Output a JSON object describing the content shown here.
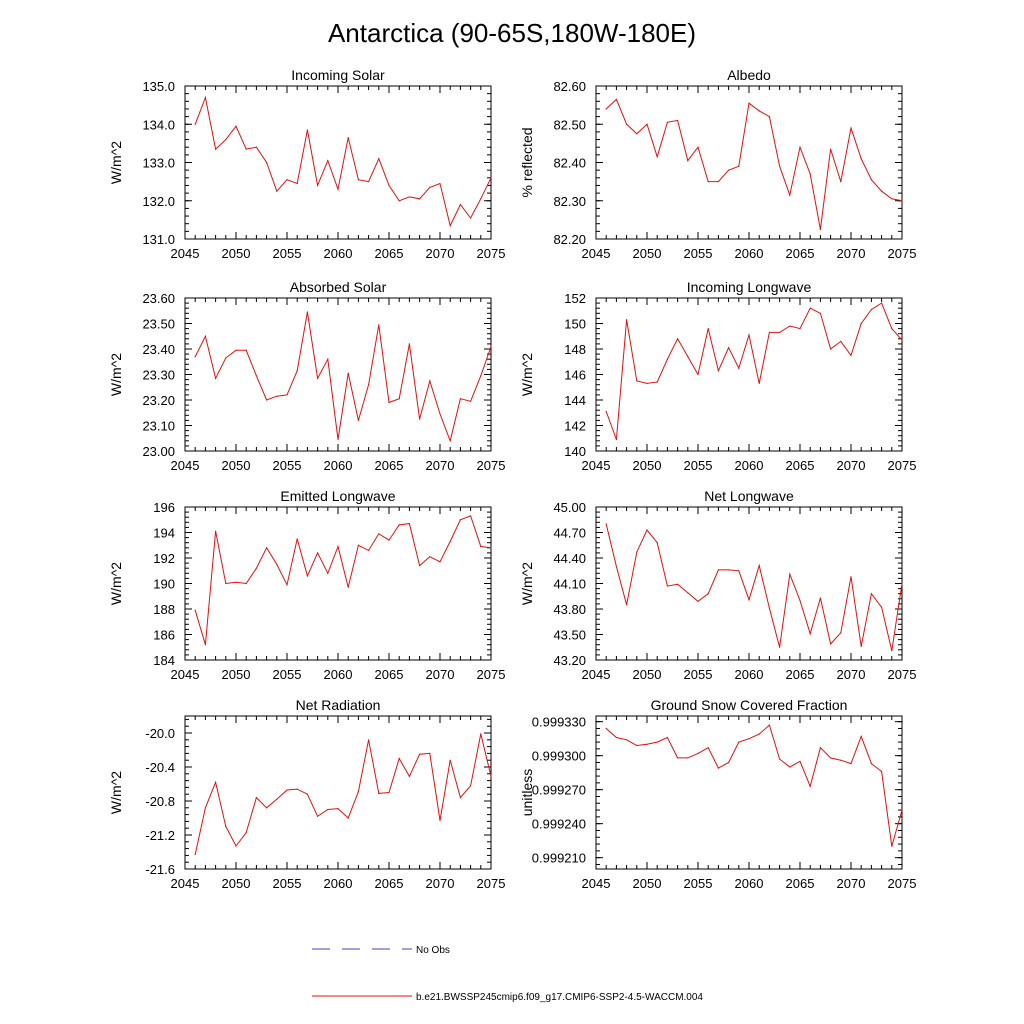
{
  "figure": {
    "title": "Antarctica (90-65S,180W-180E)"
  },
  "legend": {
    "items": [
      {
        "label": "No Obs",
        "color": "#4040c0",
        "style": "dashed"
      },
      {
        "label": "b.e21.BWSSP245cmip6.f09_g17.CMIP6-SSP2-4.5-WACCM.004",
        "color": "#e01010",
        "style": "solid"
      }
    ]
  },
  "chart_data": [
    {
      "type": "line",
      "title": "Incoming Solar",
      "ylabel": "W/m^2",
      "xlim": [
        2045,
        2075
      ],
      "ylim": [
        131.0,
        135.0
      ],
      "xticks": [
        2045,
        2050,
        2055,
        2060,
        2065,
        2070,
        2075
      ],
      "yticks": [
        "131.0",
        "132.0",
        "133.0",
        "134.0",
        "135.0"
      ],
      "series": [
        {
          "color": "#e01010",
          "x": [
            2046,
            2047,
            2048,
            2049,
            2050,
            2051,
            2052,
            2053,
            2054,
            2055,
            2056,
            2057,
            2058,
            2059,
            2060,
            2061,
            2062,
            2063,
            2064,
            2065,
            2066,
            2067,
            2068,
            2069,
            2070,
            2071,
            2072,
            2073,
            2074,
            2075
          ],
          "values": [
            134.0,
            134.7,
            133.35,
            133.6,
            133.95,
            133.35,
            133.4,
            133.0,
            132.25,
            132.55,
            132.45,
            133.85,
            132.4,
            133.05,
            132.3,
            133.65,
            132.55,
            132.5,
            133.1,
            132.4,
            132.0,
            132.1,
            132.05,
            132.35,
            132.45,
            131.35,
            131.9,
            131.55,
            132.05,
            132.6
          ]
        }
      ]
    },
    {
      "type": "line",
      "title": "Albedo",
      "ylabel": "% reflected",
      "xlim": [
        2045,
        2075
      ],
      "ylim": [
        82.2,
        82.6
      ],
      "xticks": [
        2045,
        2050,
        2055,
        2060,
        2065,
        2070,
        2075
      ],
      "yticks": [
        "82.20",
        "82.30",
        "82.40",
        "82.50",
        "82.60"
      ],
      "series": [
        {
          "color": "#e01010",
          "x": [
            2046,
            2047,
            2048,
            2049,
            2050,
            2051,
            2052,
            2053,
            2054,
            2055,
            2056,
            2057,
            2058,
            2059,
            2060,
            2061,
            2062,
            2063,
            2064,
            2065,
            2066,
            2067,
            2068,
            2069,
            2070,
            2071,
            2072,
            2073,
            2074,
            2075
          ],
          "values": [
            82.54,
            82.565,
            82.5,
            82.475,
            82.5,
            82.415,
            82.505,
            82.51,
            82.405,
            82.44,
            82.35,
            82.35,
            82.38,
            82.39,
            82.555,
            82.535,
            82.52,
            82.39,
            82.315,
            82.44,
            82.37,
            82.225,
            82.435,
            82.35,
            82.49,
            82.41,
            82.355,
            82.325,
            82.305,
            82.3
          ]
        }
      ]
    },
    {
      "type": "line",
      "title": "Absorbed Solar",
      "ylabel": "W/m^2",
      "xlim": [
        2045,
        2075
      ],
      "ylim": [
        23.0,
        23.6
      ],
      "xticks": [
        2045,
        2050,
        2055,
        2060,
        2065,
        2070,
        2075
      ],
      "yticks": [
        "23.00",
        "23.10",
        "23.20",
        "23.30",
        "23.40",
        "23.50",
        "23.60"
      ],
      "series": [
        {
          "color": "#e01010",
          "x": [
            2046,
            2047,
            2048,
            2049,
            2050,
            2051,
            2052,
            2053,
            2054,
            2055,
            2056,
            2057,
            2058,
            2059,
            2060,
            2061,
            2062,
            2063,
            2064,
            2065,
            2066,
            2067,
            2068,
            2069,
            2070,
            2071,
            2072,
            2073,
            2074,
            2075
          ],
          "values": [
            23.37,
            23.45,
            23.285,
            23.365,
            23.395,
            23.395,
            23.295,
            23.2,
            23.215,
            23.22,
            23.315,
            23.545,
            23.285,
            23.36,
            23.045,
            23.305,
            23.12,
            23.26,
            23.495,
            23.19,
            23.205,
            23.42,
            23.125,
            23.275,
            23.145,
            23.04,
            23.205,
            23.195,
            23.295,
            23.41
          ]
        }
      ]
    },
    {
      "type": "line",
      "title": "Incoming Longwave",
      "ylabel": "W/m^2",
      "xlim": [
        2045,
        2075
      ],
      "ylim": [
        140,
        152
      ],
      "xticks": [
        2045,
        2050,
        2055,
        2060,
        2065,
        2070,
        2075
      ],
      "yticks": [
        "140",
        "142",
        "144",
        "146",
        "148",
        "150",
        "152"
      ],
      "series": [
        {
          "color": "#e01010",
          "x": [
            2046,
            2047,
            2048,
            2049,
            2050,
            2051,
            2052,
            2053,
            2054,
            2055,
            2056,
            2057,
            2058,
            2059,
            2060,
            2061,
            2062,
            2063,
            2064,
            2065,
            2066,
            2067,
            2068,
            2069,
            2070,
            2071,
            2072,
            2073,
            2074,
            2075
          ],
          "values": [
            143.1,
            140.9,
            150.3,
            145.5,
            145.3,
            145.4,
            147.2,
            148.8,
            147.4,
            146.0,
            149.6,
            146.3,
            148.1,
            146.5,
            149.1,
            145.3,
            149.3,
            149.3,
            149.8,
            149.6,
            151.2,
            150.8,
            148.0,
            148.6,
            147.5,
            150.0,
            151.1,
            151.6,
            149.6,
            148.7
          ]
        }
      ]
    },
    {
      "type": "line",
      "title": "Emitted Longwave",
      "ylabel": "W/m^2",
      "xlim": [
        2045,
        2075
      ],
      "ylim": [
        184,
        196
      ],
      "xticks": [
        2045,
        2050,
        2055,
        2060,
        2065,
        2070,
        2075
      ],
      "yticks": [
        "184",
        "186",
        "188",
        "190",
        "192",
        "194",
        "196"
      ],
      "series": [
        {
          "color": "#e01010",
          "x": [
            2046,
            2047,
            2048,
            2049,
            2050,
            2051,
            2052,
            2053,
            2054,
            2055,
            2056,
            2057,
            2058,
            2059,
            2060,
            2061,
            2062,
            2063,
            2064,
            2065,
            2066,
            2067,
            2068,
            2069,
            2070,
            2071,
            2072,
            2073,
            2074,
            2075
          ],
          "values": [
            187.9,
            185.2,
            194.1,
            190.0,
            190.1,
            190.0,
            191.2,
            192.8,
            191.5,
            189.9,
            193.5,
            190.6,
            192.4,
            190.8,
            192.9,
            189.7,
            193.0,
            192.6,
            193.9,
            193.4,
            194.6,
            194.7,
            191.4,
            192.1,
            191.7,
            193.3,
            195.0,
            195.3,
            192.9,
            192.8
          ]
        }
      ]
    },
    {
      "type": "line",
      "title": "Net Longwave",
      "ylabel": "W/m^2",
      "xlim": [
        2045,
        2075
      ],
      "ylim": [
        43.2,
        45.0
      ],
      "xticks": [
        2045,
        2050,
        2055,
        2060,
        2065,
        2070,
        2075
      ],
      "yticks": [
        "43.20",
        "43.50",
        "43.80",
        "44.10",
        "44.40",
        "44.70",
        "45.00"
      ],
      "series": [
        {
          "color": "#e01010",
          "x": [
            2046,
            2047,
            2048,
            2049,
            2050,
            2051,
            2052,
            2053,
            2054,
            2055,
            2056,
            2057,
            2058,
            2059,
            2060,
            2061,
            2062,
            2063,
            2064,
            2065,
            2066,
            2067,
            2068,
            2069,
            2070,
            2071,
            2072,
            2073,
            2074,
            2075
          ],
          "values": [
            44.8,
            44.3,
            43.85,
            44.47,
            44.73,
            44.58,
            44.07,
            44.09,
            43.99,
            43.89,
            43.98,
            44.26,
            44.26,
            44.25,
            43.91,
            44.31,
            43.81,
            43.35,
            44.21,
            43.9,
            43.51,
            43.93,
            43.39,
            43.52,
            44.18,
            43.36,
            43.98,
            43.82,
            43.31,
            44.1
          ]
        }
      ]
    },
    {
      "type": "line",
      "title": "Net Radiation",
      "ylabel": "W/m^2",
      "xlim": [
        2045,
        2075
      ],
      "ylim": [
        -21.6,
        -19.8
      ],
      "xticks": [
        2045,
        2050,
        2055,
        2060,
        2065,
        2070,
        2075
      ],
      "yticks": [
        "-21.6",
        "-21.2",
        "-20.8",
        "-20.4",
        "-20.0"
      ],
      "yticks_values": [
        -21.6,
        -21.2,
        -20.8,
        -20.4,
        -20.0
      ],
      "series": [
        {
          "color": "#e01010",
          "x": [
            2046,
            2047,
            2048,
            2049,
            2050,
            2051,
            2052,
            2053,
            2054,
            2055,
            2056,
            2057,
            2058,
            2059,
            2060,
            2061,
            2062,
            2063,
            2064,
            2065,
            2066,
            2067,
            2068,
            2069,
            2070,
            2071,
            2072,
            2073,
            2074,
            2075
          ],
          "values": [
            -21.43,
            -20.88,
            -20.58,
            -21.1,
            -21.33,
            -21.17,
            -20.76,
            -20.88,
            -20.78,
            -20.67,
            -20.66,
            -20.72,
            -20.98,
            -20.9,
            -20.89,
            -21.0,
            -20.69,
            -20.08,
            -20.71,
            -20.7,
            -20.3,
            -20.51,
            -20.25,
            -20.24,
            -21.03,
            -20.32,
            -20.76,
            -20.62,
            -20.01,
            -20.51
          ]
        }
      ]
    },
    {
      "type": "line",
      "title": "Ground Snow Covered Fraction",
      "ylabel": "unitless",
      "xlim": [
        2045,
        2075
      ],
      "ylim": [
        0.9992,
        0.999335
      ],
      "xticks": [
        2045,
        2050,
        2055,
        2060,
        2065,
        2070,
        2075
      ],
      "yticks": [
        "0.999210",
        "0.999240",
        "0.999270",
        "0.999300",
        "0.999330"
      ],
      "yticks_values": [
        0.99921,
        0.99924,
        0.99927,
        0.9993,
        0.99933
      ],
      "series": [
        {
          "color": "#e01010",
          "x": [
            2046,
            2047,
            2048,
            2049,
            2050,
            2051,
            2052,
            2053,
            2054,
            2055,
            2056,
            2057,
            2058,
            2059,
            2060,
            2061,
            2062,
            2063,
            2064,
            2065,
            2066,
            2067,
            2068,
            2069,
            2070,
            2071,
            2072,
            2073,
            2074,
            2075
          ],
          "values": [
            0.999324,
            0.999316,
            0.999314,
            0.999309,
            0.99931,
            0.999312,
            0.999316,
            0.999298,
            0.999298,
            0.999302,
            0.999307,
            0.999289,
            0.999294,
            0.999312,
            0.999315,
            0.999319,
            0.999327,
            0.999297,
            0.99929,
            0.999295,
            0.999273,
            0.999307,
            0.999298,
            0.999296,
            0.999293,
            0.999317,
            0.999293,
            0.999286,
            0.99922,
            0.999252
          ]
        }
      ]
    }
  ]
}
